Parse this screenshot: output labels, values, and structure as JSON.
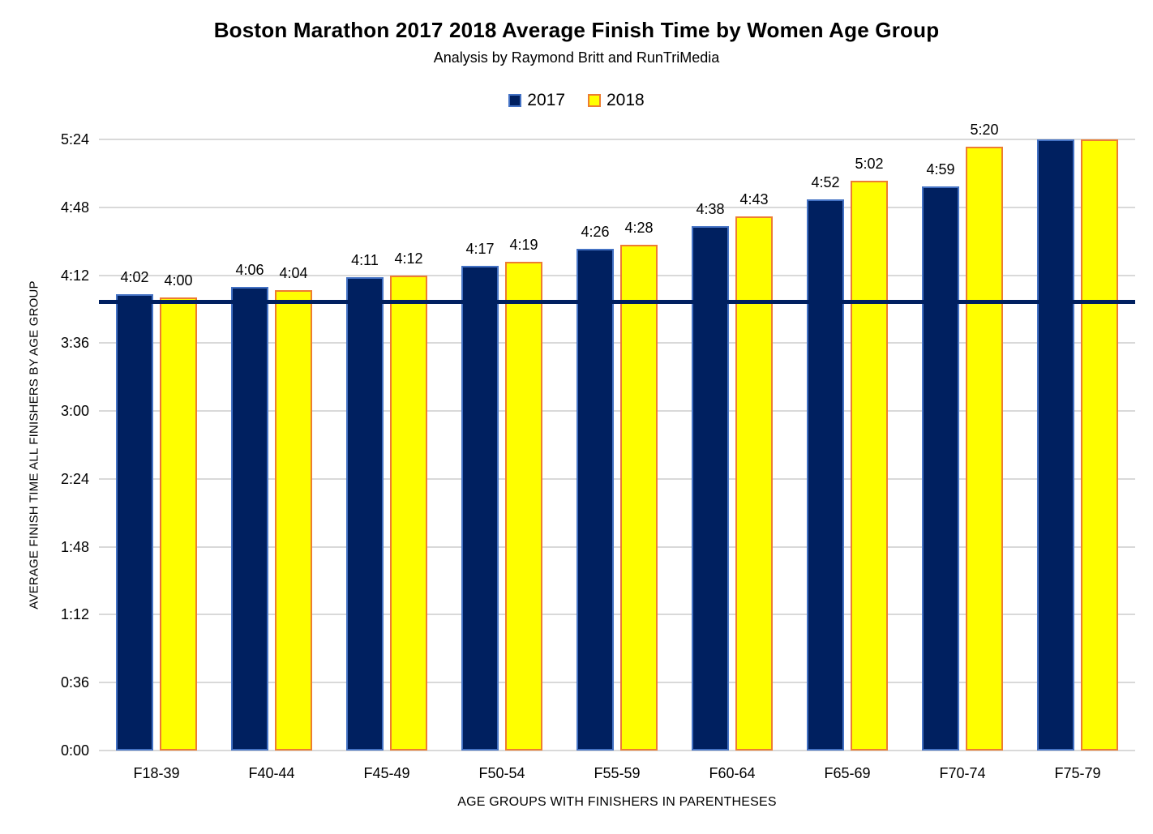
{
  "title": "Boston Marathon 2017 2018 Average Finish Time by Women Age Group",
  "subtitle": "Analysis by Raymond Britt and RunTriMedia",
  "chart_data": {
    "type": "bar",
    "title": "Boston Marathon 2017 2018 Average Finish Time by Women Age Group",
    "subtitle": "Analysis by Raymond Britt and RunTriMedia",
    "xlabel": "AGE GROUPS WITH FINISHERS IN PARENTHESES",
    "ylabel": "AVERAGE FINISH TIME ALL FINISHERS BY AGE GROUP",
    "categories": [
      "F18-39",
      "F40-44",
      "F45-49",
      "F50-54",
      "F55-59",
      "F60-64",
      "F65-69",
      "F70-74",
      "F75-79"
    ],
    "series": [
      {
        "name": "2017",
        "fill": "#002060",
        "border": "#4472C4",
        "labels": [
          "4:02",
          "4:06",
          "4:11",
          "4:17",
          "4:26",
          "4:38",
          "4:52",
          "4:59",
          ""
        ],
        "values_minutes": [
          242,
          246,
          251,
          257,
          266,
          278,
          292,
          299,
          324
        ]
      },
      {
        "name": "2018",
        "fill": "#FFFF00",
        "border": "#ED7D31",
        "labels": [
          "4:00",
          "4:04",
          "4:12",
          "4:19",
          "4:28",
          "4:43",
          "5:02",
          "5:20",
          ""
        ],
        "values_minutes": [
          240,
          244,
          252,
          259,
          268,
          283,
          302,
          320,
          324
        ]
      }
    ],
    "y_ticks": [
      "0:00",
      "0:36",
      "1:12",
      "1:48",
      "2:24",
      "3:00",
      "3:36",
      "4:12",
      "4:48",
      "5:24"
    ],
    "y_tick_minutes": [
      0,
      36,
      72,
      108,
      144,
      180,
      216,
      252,
      288,
      324
    ],
    "ylim_minutes": [
      0,
      324
    ],
    "grid": true,
    "gridline_color": "#d9d9d9",
    "legend_position": "top",
    "reference_line": {
      "value_minutes": 238,
      "color": "#002060"
    },
    "notes": "F75-79 bars reach the 5:24 axis maximum and carry no data labels"
  }
}
